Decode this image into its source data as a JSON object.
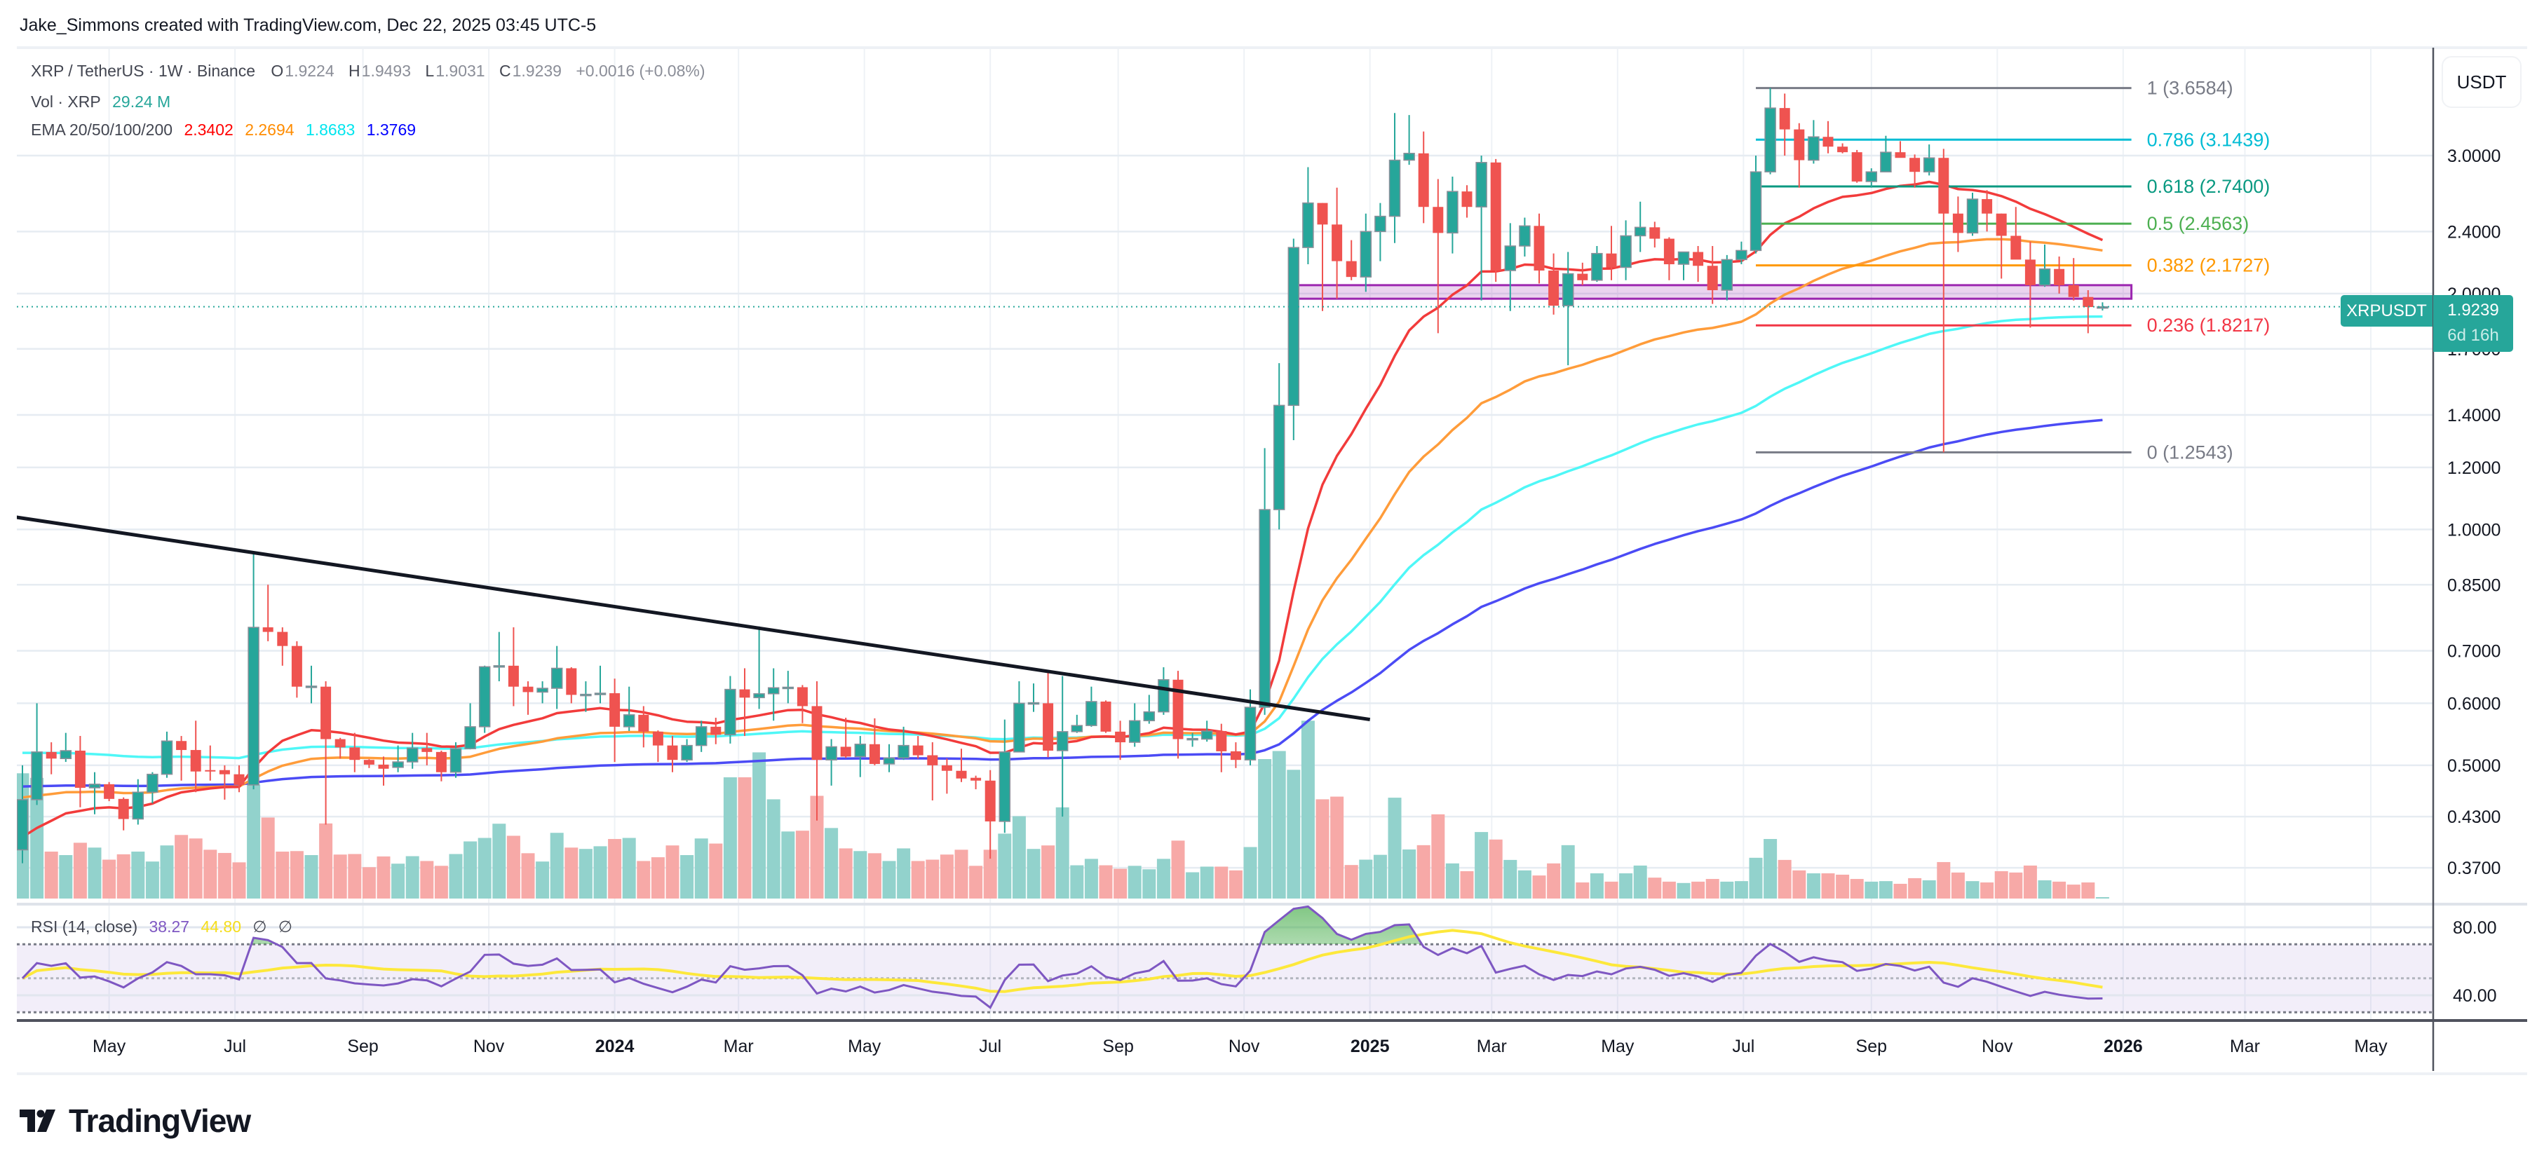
{
  "attribution": "Jake_Simmons created with TradingView.com, Dec 22, 2025 03:45 UTC-5",
  "legend": {
    "symbol": "XRP / TetherUS · 1W · Binance",
    "o_label": "O",
    "o": "1.9224",
    "h_label": "H",
    "h": "1.9493",
    "l_label": "L",
    "l": "1.9031",
    "c_label": "C",
    "c": "1.9239",
    "change": "+0.0016 (+0.08%)",
    "vol_label": "Vol · XRP",
    "vol_value": "29.24 M",
    "ema_label": "EMA 20/50/100/200",
    "ema20": "2.3402",
    "ema50": "2.2694",
    "ema100": "1.8683",
    "ema200": "1.3769"
  },
  "currency_button": "USDT",
  "last_price": {
    "symbol": "XRPUSDT",
    "price": "1.9239",
    "countdown": "6d 16h",
    "value": 1.9239
  },
  "rsi_legend": {
    "label": "RSI (14, close)",
    "rsi": "38.27",
    "ma": "44.80",
    "icon1": "∅",
    "icon2": "∅"
  },
  "logo_text": "TradingView",
  "colors": {
    "up": "#26a69a",
    "down": "#ef5350",
    "vol_up": "#92d2cc",
    "vol_down": "#f7a9a7",
    "ema20": "#f23b3b",
    "ema50": "#ff9c3a",
    "ema100": "#4ff7f7",
    "ema200": "#4b4bf5",
    "rsi": "#7e57c2",
    "rsi_ma": "#fde83b",
    "trendline": "#131722",
    "zone": "#9c27b0"
  },
  "chart_data": {
    "type": "candlestick",
    "interval": "1W",
    "first_week": "2023-03-20",
    "y_scale": "log",
    "price_axis": {
      "unit": "USDT",
      "ticks": [
        "3.0000",
        "2.4000",
        "2.0000",
        "1.7000",
        "1.4000",
        "1.2000",
        "1.0000",
        "0.8500",
        "0.7000",
        "0.6000",
        "0.5000",
        "0.4300",
        "0.3700"
      ]
    },
    "time_axis": [
      {
        "label": "May",
        "date": "2023-05-01"
      },
      {
        "label": "Jul",
        "date": "2023-07-01"
      },
      {
        "label": "Sep",
        "date": "2023-09-01"
      },
      {
        "label": "Nov",
        "date": "2023-11-01"
      },
      {
        "label": "2024",
        "date": "2024-01-01",
        "bold": true
      },
      {
        "label": "Mar",
        "date": "2024-03-01"
      },
      {
        "label": "May",
        "date": "2024-05-01"
      },
      {
        "label": "Jul",
        "date": "2024-07-01"
      },
      {
        "label": "Sep",
        "date": "2024-09-01"
      },
      {
        "label": "Nov",
        "date": "2024-11-01"
      },
      {
        "label": "2025",
        "date": "2025-01-01",
        "bold": true
      },
      {
        "label": "Mar",
        "date": "2025-03-01"
      },
      {
        "label": "May",
        "date": "2025-05-01"
      },
      {
        "label": "Jul",
        "date": "2025-07-01"
      },
      {
        "label": "Sep",
        "date": "2025-09-01"
      },
      {
        "label": "Nov",
        "date": "2025-11-01"
      },
      {
        "label": "2026",
        "date": "2026-01-01",
        "bold": true
      },
      {
        "label": "Mar",
        "date": "2026-03-01"
      },
      {
        "label": "May",
        "date": "2026-05-01"
      }
    ],
    "ohlc": [
      [
        0.39,
        0.5,
        0.375,
        0.452
      ],
      [
        0.452,
        0.6,
        0.445,
        0.52
      ],
      [
        0.52,
        0.535,
        0.487,
        0.51
      ],
      [
        0.51,
        0.55,
        0.505,
        0.522
      ],
      [
        0.522,
        0.545,
        0.442,
        0.468
      ],
      [
        0.468,
        0.49,
        0.433,
        0.473
      ],
      [
        0.473,
        0.476,
        0.45,
        0.453
      ],
      [
        0.453,
        0.455,
        0.413,
        0.427
      ],
      [
        0.427,
        0.48,
        0.42,
        0.462
      ],
      [
        0.462,
        0.49,
        0.447,
        0.487
      ],
      [
        0.487,
        0.552,
        0.482,
        0.537
      ],
      [
        0.537,
        0.545,
        0.478,
        0.523
      ],
      [
        0.523,
        0.57,
        0.462,
        0.491
      ],
      [
        0.493,
        0.53,
        0.478,
        0.491
      ],
      [
        0.493,
        0.5,
        0.452,
        0.487
      ],
      [
        0.487,
        0.5,
        0.462,
        0.472
      ],
      [
        0.472,
        0.938,
        0.466,
        0.75
      ],
      [
        0.75,
        0.85,
        0.72,
        0.74
      ],
      [
        0.74,
        0.75,
        0.67,
        0.71
      ],
      [
        0.71,
        0.72,
        0.61,
        0.63
      ],
      [
        0.63,
        0.67,
        0.6,
        0.631
      ],
      [
        0.63,
        0.64,
        0.42,
        0.54
      ],
      [
        0.54,
        0.542,
        0.51,
        0.527
      ],
      [
        0.527,
        0.55,
        0.49,
        0.508
      ],
      [
        0.508,
        0.509,
        0.496,
        0.501
      ],
      [
        0.501,
        0.513,
        0.471,
        0.495
      ],
      [
        0.497,
        0.53,
        0.49,
        0.505
      ],
      [
        0.505,
        0.55,
        0.495,
        0.526
      ],
      [
        0.526,
        0.55,
        0.5,
        0.52
      ],
      [
        0.52,
        0.522,
        0.477,
        0.49
      ],
      [
        0.49,
        0.535,
        0.482,
        0.525
      ],
      [
        0.525,
        0.6,
        0.524,
        0.56
      ],
      [
        0.56,
        0.67,
        0.55,
        0.668
      ],
      [
        0.668,
        0.74,
        0.64,
        0.67
      ],
      [
        0.67,
        0.75,
        0.595,
        0.63
      ],
      [
        0.63,
        0.64,
        0.58,
        0.62
      ],
      [
        0.62,
        0.64,
        0.6,
        0.627
      ],
      [
        0.627,
        0.71,
        0.59,
        0.665
      ],
      [
        0.665,
        0.667,
        0.6,
        0.615
      ],
      [
        0.615,
        0.64,
        0.585,
        0.616
      ],
      [
        0.616,
        0.67,
        0.6,
        0.618
      ],
      [
        0.618,
        0.645,
        0.505,
        0.56
      ],
      [
        0.56,
        0.63,
        0.553,
        0.58
      ],
      [
        0.58,
        0.595,
        0.527,
        0.552
      ],
      [
        0.552,
        0.554,
        0.505,
        0.53
      ],
      [
        0.53,
        0.545,
        0.49,
        0.508
      ],
      [
        0.508,
        0.54,
        0.505,
        0.53
      ],
      [
        0.53,
        0.57,
        0.52,
        0.56
      ],
      [
        0.56,
        0.575,
        0.532,
        0.547
      ],
      [
        0.547,
        0.65,
        0.533,
        0.625
      ],
      [
        0.625,
        0.665,
        0.545,
        0.61
      ],
      [
        0.61,
        0.752,
        0.59,
        0.617
      ],
      [
        0.617,
        0.665,
        0.57,
        0.628
      ],
      [
        0.628,
        0.66,
        0.6,
        0.629
      ],
      [
        0.629,
        0.633,
        0.566,
        0.595
      ],
      [
        0.595,
        0.64,
        0.425,
        0.508
      ],
      [
        0.508,
        0.54,
        0.471,
        0.528
      ],
      [
        0.528,
        0.575,
        0.511,
        0.513
      ],
      [
        0.513,
        0.545,
        0.483,
        0.532
      ],
      [
        0.532,
        0.574,
        0.5,
        0.502
      ],
      [
        0.502,
        0.532,
        0.49,
        0.511
      ],
      [
        0.511,
        0.56,
        0.508,
        0.53
      ],
      [
        0.53,
        0.545,
        0.51,
        0.515
      ],
      [
        0.515,
        0.535,
        0.451,
        0.5
      ],
      [
        0.5,
        0.51,
        0.46,
        0.492
      ],
      [
        0.492,
        0.525,
        0.476,
        0.481
      ],
      [
        0.482,
        0.485,
        0.466,
        0.478
      ],
      [
        0.478,
        0.493,
        0.38,
        0.424
      ],
      [
        0.424,
        0.572,
        0.41,
        0.52
      ],
      [
        0.52,
        0.64,
        0.52,
        0.6
      ],
      [
        0.6,
        0.636,
        0.585,
        0.601
      ],
      [
        0.6,
        0.66,
        0.512,
        0.522
      ],
      [
        0.522,
        0.65,
        0.43,
        0.552
      ],
      [
        0.552,
        0.58,
        0.55,
        0.562
      ],
      [
        0.562,
        0.63,
        0.56,
        0.603
      ],
      [
        0.603,
        0.605,
        0.55,
        0.552
      ],
      [
        0.552,
        0.57,
        0.508,
        0.535
      ],
      [
        0.535,
        0.6,
        0.528,
        0.57
      ],
      [
        0.57,
        0.615,
        0.565,
        0.585
      ],
      [
        0.585,
        0.667,
        0.58,
        0.643
      ],
      [
        0.643,
        0.66,
        0.51,
        0.54
      ],
      [
        0.54,
        0.55,
        0.528,
        0.541
      ],
      [
        0.54,
        0.57,
        0.536,
        0.553
      ],
      [
        0.553,
        0.565,
        0.49,
        0.521
      ],
      [
        0.521,
        0.535,
        0.496,
        0.508
      ],
      [
        0.508,
        0.625,
        0.5,
        0.593
      ],
      [
        0.593,
        1.27,
        0.58,
        1.06
      ],
      [
        1.06,
        1.63,
        1.0,
        1.44
      ],
      [
        1.44,
        2.35,
        1.3,
        2.29
      ],
      [
        2.29,
        2.9,
        2.18,
        2.61
      ],
      [
        2.61,
        2.61,
        1.9,
        2.45
      ],
      [
        2.45,
        2.73,
        1.97,
        2.2
      ],
      [
        2.2,
        2.34,
        2.08,
        2.1
      ],
      [
        2.1,
        2.53,
        2.01,
        2.4
      ],
      [
        2.4,
        2.61,
        2.2,
        2.51
      ],
      [
        2.51,
        3.4,
        2.32,
        2.96
      ],
      [
        2.96,
        3.38,
        2.92,
        3.02
      ],
      [
        3.02,
        3.22,
        2.46,
        2.58
      ],
      [
        2.58,
        2.8,
        1.78,
        2.39
      ],
      [
        2.39,
        2.82,
        2.25,
        2.7
      ],
      [
        2.7,
        2.75,
        2.5,
        2.58
      ],
      [
        2.58,
        3.0,
        1.96,
        2.94
      ],
      [
        2.94,
        2.97,
        2.07,
        2.14
      ],
      [
        2.14,
        2.46,
        1.9,
        2.3
      ],
      [
        2.3,
        2.5,
        2.23,
        2.44
      ],
      [
        2.44,
        2.53,
        2.06,
        2.14
      ],
      [
        2.14,
        2.25,
        1.88,
        1.93
      ],
      [
        1.93,
        2.26,
        1.62,
        2.12
      ],
      [
        2.12,
        2.19,
        2.05,
        2.08
      ],
      [
        2.08,
        2.3,
        2.07,
        2.25
      ],
      [
        2.25,
        2.44,
        2.08,
        2.16
      ],
      [
        2.16,
        2.48,
        2.08,
        2.37
      ],
      [
        2.37,
        2.62,
        2.26,
        2.43
      ],
      [
        2.43,
        2.47,
        2.29,
        2.35
      ],
      [
        2.35,
        2.36,
        2.08,
        2.18
      ],
      [
        2.18,
        2.26,
        2.08,
        2.26
      ],
      [
        2.26,
        2.3,
        2.07,
        2.17
      ],
      [
        2.17,
        2.3,
        1.94,
        2.02
      ],
      [
        2.02,
        2.24,
        1.96,
        2.21
      ],
      [
        2.21,
        2.33,
        2.18,
        2.27
      ],
      [
        2.27,
        3.0,
        2.25,
        2.86
      ],
      [
        2.86,
        3.6584,
        2.84,
        3.45
      ],
      [
        3.45,
        3.6,
        3.0,
        3.24
      ],
      [
        3.24,
        3.3,
        2.73,
        2.96
      ],
      [
        2.96,
        3.33,
        2.93,
        3.17
      ],
      [
        3.17,
        3.32,
        3.02,
        3.08
      ],
      [
        3.08,
        3.11,
        3.02,
        3.03
      ],
      [
        3.03,
        3.05,
        2.77,
        2.78
      ],
      [
        2.78,
        2.89,
        2.73,
        2.86
      ],
      [
        2.86,
        3.18,
        2.86,
        3.03
      ],
      [
        3.03,
        3.13,
        2.99,
        2.98
      ],
      [
        2.98,
        3.01,
        2.73,
        2.86
      ],
      [
        2.86,
        3.1,
        2.83,
        2.98
      ],
      [
        2.98,
        3.06,
        1.2543,
        2.53
      ],
      [
        2.53,
        2.66,
        2.26,
        2.39
      ],
      [
        2.39,
        2.69,
        2.37,
        2.64
      ],
      [
        2.64,
        2.71,
        2.4,
        2.53
      ],
      [
        2.53,
        2.53,
        2.09,
        2.37
      ],
      [
        2.37,
        2.58,
        2.24,
        2.21
      ],
      [
        2.21,
        2.33,
        1.81,
        2.05
      ],
      [
        2.05,
        2.31,
        2.04,
        2.15
      ],
      [
        2.15,
        2.23,
        2.0,
        2.05
      ],
      [
        2.05,
        2.22,
        1.96,
        1.98
      ],
      [
        1.98,
        2.02,
        1.78,
        1.9224
      ],
      [
        1.9224,
        1.9493,
        1.9031,
        1.9239
      ]
    ],
    "volume_millions": [
      4670,
      4500,
      1750,
      1620,
      2080,
      1900,
      1450,
      1650,
      1750,
      1380,
      1980,
      2370,
      2240,
      1820,
      1700,
      1350,
      4250,
      3020,
      1750,
      1770,
      1620,
      2800,
      1640,
      1660,
      1170,
      1570,
      1300,
      1580,
      1400,
      1220,
      1660,
      2130,
      2260,
      2790,
      2340,
      1690,
      1380,
      2450,
      1900,
      1850,
      1950,
      2220,
      2260,
      1400,
      1540,
      1980,
      1620,
      2240,
      2050,
      4520,
      4520,
      5450,
      3700,
      2500,
      2530,
      3830,
      2630,
      1870,
      1770,
      1690,
      1400,
      1870,
      1400,
      1450,
      1640,
      1820,
      1220,
      1820,
      2420,
      3070,
      1850,
      1980,
      3400,
      1240,
      1480,
      1240,
      1110,
      1220,
      1090,
      1480,
      2160,
      980,
      1190,
      1190,
      1050,
      1920,
      5200,
      5500,
      4800,
      6630,
      3700,
      3800,
      1250,
      1450,
      1630,
      3760,
      1830,
      1990,
      3140,
      1310,
      1020,
      2480,
      2200,
      1440,
      1050,
      860,
      1310,
      1990,
      600,
      940,
      630,
      940,
      1230,
      780,
      630,
      580,
      630,
      730,
      630,
      650,
      1520,
      2220,
      1440,
      1050,
      940,
      940,
      890,
      730,
      630,
      650,
      550,
      760,
      680,
      1360,
      970,
      650,
      600,
      1020,
      970,
      1230,
      680,
      630,
      520,
      600,
      29.24
    ],
    "ema_start": {
      "ema20": 0.4,
      "ema50": 0.455,
      "ema100": 0.52,
      "ema200": 0.47
    },
    "trendline": [
      {
        "date": "2023-03-20",
        "price": 1.037
      },
      {
        "date": "2025-01-01",
        "price": 0.572
      }
    ],
    "zone": {
      "from_date": "2024-11-25",
      "to_date": "2026-01-05",
      "low": 1.97,
      "high": 2.05
    },
    "fibonacci": {
      "from_date": "2025-07-07",
      "to_date": "2026-01-05",
      "levels": [
        {
          "label": "1 (3.6584)",
          "ratio": 1,
          "price": 3.6584,
          "color": "#787b86"
        },
        {
          "label": "0.786 (3.1439)",
          "ratio": 0.786,
          "price": 3.1439,
          "color": "#00bcd4"
        },
        {
          "label": "0.618 (2.7400)",
          "ratio": 0.618,
          "price": 2.74,
          "color": "#089981"
        },
        {
          "label": "0.5 (2.4563)",
          "ratio": 0.5,
          "price": 2.4563,
          "color": "#4caf50"
        },
        {
          "label": "0.382 (2.1727)",
          "ratio": 0.382,
          "price": 2.1727,
          "color": "#ff9800"
        },
        {
          "label": "0.236 (1.8217)",
          "ratio": 0.236,
          "price": 1.8217,
          "color": "#f23645"
        },
        {
          "label": "0 (1.2543)",
          "ratio": 0,
          "price": 1.2543,
          "color": "#787b86"
        }
      ]
    },
    "rsi": {
      "period": 14,
      "ma_period": 14,
      "levels": [
        70,
        50,
        30
      ],
      "ticks": [
        "80.00",
        "40.00"
      ],
      "last": 38.27,
      "ma_last": 44.8
    }
  }
}
